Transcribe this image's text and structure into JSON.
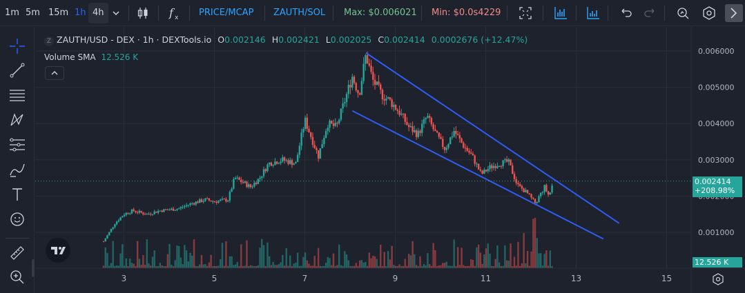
{
  "toolbar": {
    "intervals": [
      "1m",
      "5m",
      "15m",
      "1h",
      "4h"
    ],
    "active_interval": "1h",
    "selected_interval": "4h",
    "price_mcap": "PRICE/MCAP",
    "pair_toggle": "ZAUTH/SOL",
    "max": "Max: $0.006021",
    "min": "Min: $0.0s4229"
  },
  "legend": {
    "symbol": "ZAUTH/USD - DEX · 1h · DEXTools.io",
    "o_label": "O",
    "o": "0.002146",
    "h_label": "H",
    "h": "0.002421",
    "l_label": "L",
    "l": "0.002025",
    "c_label": "C",
    "c": "0.002414",
    "change": "0.0002676 (+12.47%)",
    "volume_label": "Volume SMA",
    "volume_value": "12.526 K"
  },
  "price_axis": {
    "ticks": [
      "0.006000",
      "0.005000",
      "0.004000",
      "0.003000",
      "0.002000",
      "0.001000"
    ],
    "last_price": "0.002414",
    "last_change": "+208.98%",
    "volume_tag": "12.526 K"
  },
  "time_axis": {
    "ticks": [
      "3",
      "5",
      "7",
      "9",
      "11",
      "13",
      "15"
    ]
  },
  "colors": {
    "up": "#26a69a",
    "down": "#ef5350",
    "trendline": "#2f5cf5",
    "bg": "#1e222d"
  },
  "chart_data": {
    "type": "candlestick",
    "x_unit": "day",
    "ylim": [
      0,
      0.0066
    ],
    "xlim": [
      1.95,
      17.5
    ],
    "close_series": [
      [
        2.55,
        0.00075
      ],
      [
        2.8,
        0.00125
      ],
      [
        3.0,
        0.0015
      ],
      [
        3.2,
        0.0016
      ],
      [
        3.5,
        0.0015
      ],
      [
        3.8,
        0.0016
      ],
      [
        4.2,
        0.00165
      ],
      [
        4.5,
        0.0018
      ],
      [
        4.8,
        0.0019
      ],
      [
        5.0,
        0.00185
      ],
      [
        5.3,
        0.0019
      ],
      [
        5.45,
        0.0025
      ],
      [
        5.6,
        0.0024
      ],
      [
        5.8,
        0.00225
      ],
      [
        6.0,
        0.0025
      ],
      [
        6.2,
        0.0029
      ],
      [
        6.5,
        0.003
      ],
      [
        6.8,
        0.0029
      ],
      [
        7.0,
        0.0041
      ],
      [
        7.15,
        0.0036
      ],
      [
        7.3,
        0.0031
      ],
      [
        7.5,
        0.004
      ],
      [
        7.7,
        0.0039
      ],
      [
        7.9,
        0.0047
      ],
      [
        8.05,
        0.0053
      ],
      [
        8.2,
        0.0048
      ],
      [
        8.35,
        0.0059
      ],
      [
        8.5,
        0.0052
      ],
      [
        8.7,
        0.0048
      ],
      [
        8.9,
        0.0046
      ],
      [
        9.1,
        0.0043
      ],
      [
        9.3,
        0.0039
      ],
      [
        9.5,
        0.0037
      ],
      [
        9.7,
        0.0042
      ],
      [
        9.9,
        0.0037
      ],
      [
        10.1,
        0.0033
      ],
      [
        10.3,
        0.0038
      ],
      [
        10.5,
        0.0034
      ],
      [
        10.7,
        0.0031
      ],
      [
        10.9,
        0.0026
      ],
      [
        11.1,
        0.0028
      ],
      [
        11.3,
        0.0029
      ],
      [
        11.5,
        0.00295
      ],
      [
        11.7,
        0.0023
      ],
      [
        11.9,
        0.0021
      ],
      [
        12.1,
        0.0018
      ],
      [
        12.3,
        0.00225
      ],
      [
        12.4,
        0.002
      ],
      [
        12.5,
        0.002414
      ]
    ],
    "volume_sma": 12526,
    "last_price": 0.002414,
    "trendlines": [
      {
        "x": [
          8.35,
          13.95
        ],
        "y": [
          0.00595,
          0.00125
        ]
      },
      {
        "x": [
          8.05,
          13.6
        ],
        "y": [
          0.00435,
          0.00082
        ]
      }
    ]
  }
}
